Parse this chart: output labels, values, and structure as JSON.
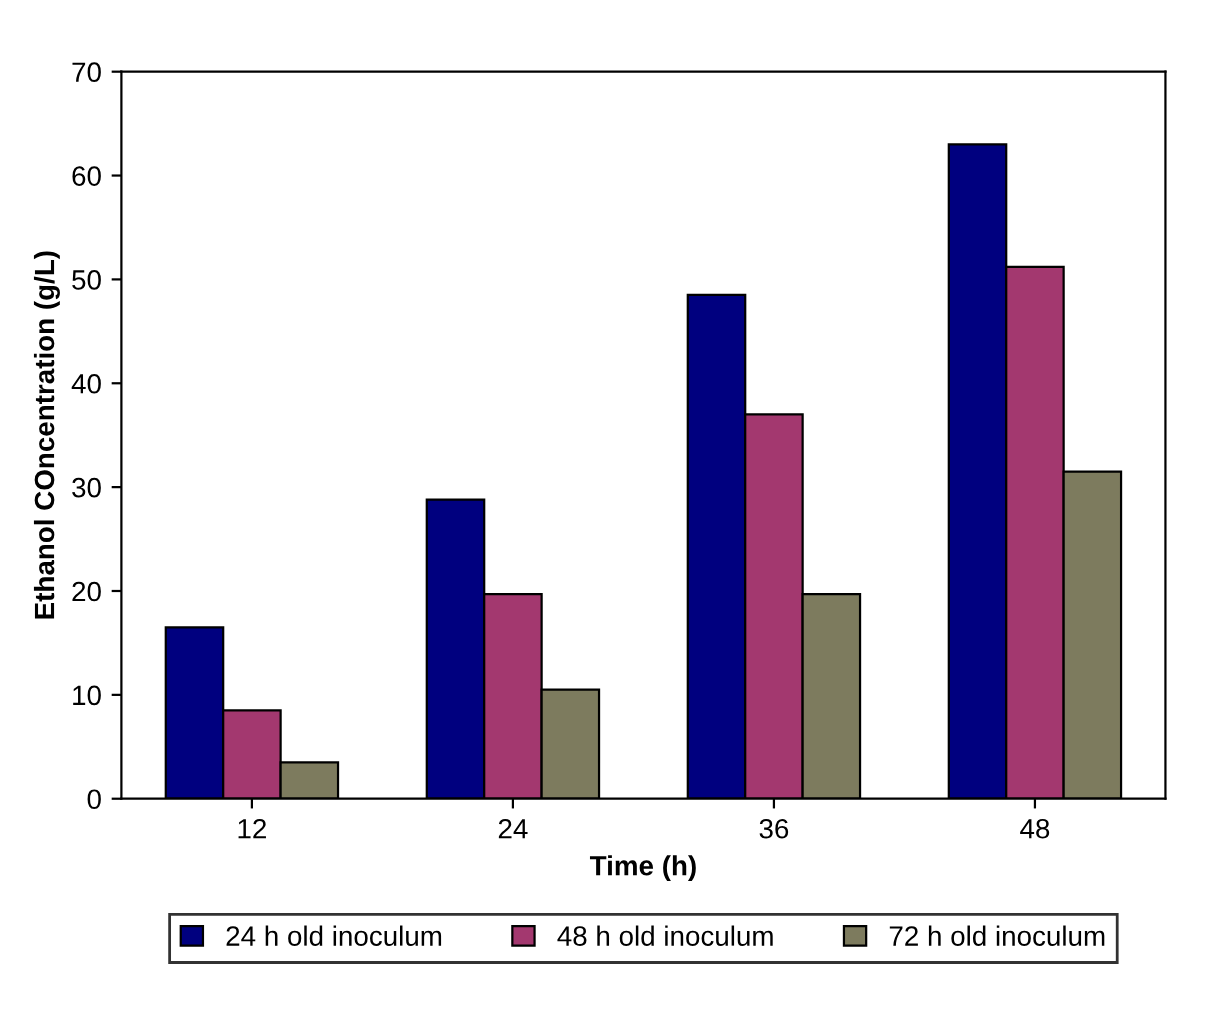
{
  "chart_data": {
    "type": "bar",
    "xlabel": "Time (h)",
    "ylabel": "Ethanol COncentration (g/L)",
    "categories": [
      "12",
      "24",
      "36",
      "48"
    ],
    "series": [
      {
        "name": "24 h old inoculum",
        "color": "#00007f",
        "values": [
          16.5,
          28.8,
          48.5,
          63
        ]
      },
      {
        "name": "48 h old inoculum",
        "color": "#a3386f",
        "values": [
          8.5,
          19.7,
          37,
          51.2
        ]
      },
      {
        "name": "72 h old inoculum",
        "color": "#7d7b5e",
        "values": [
          3.5,
          10.5,
          19.7,
          31.5
        ]
      }
    ],
    "ylim": [
      0,
      70
    ],
    "yticks": [
      0,
      10,
      20,
      30,
      40,
      50,
      60,
      70
    ],
    "grid": false,
    "legend": "bottom"
  }
}
